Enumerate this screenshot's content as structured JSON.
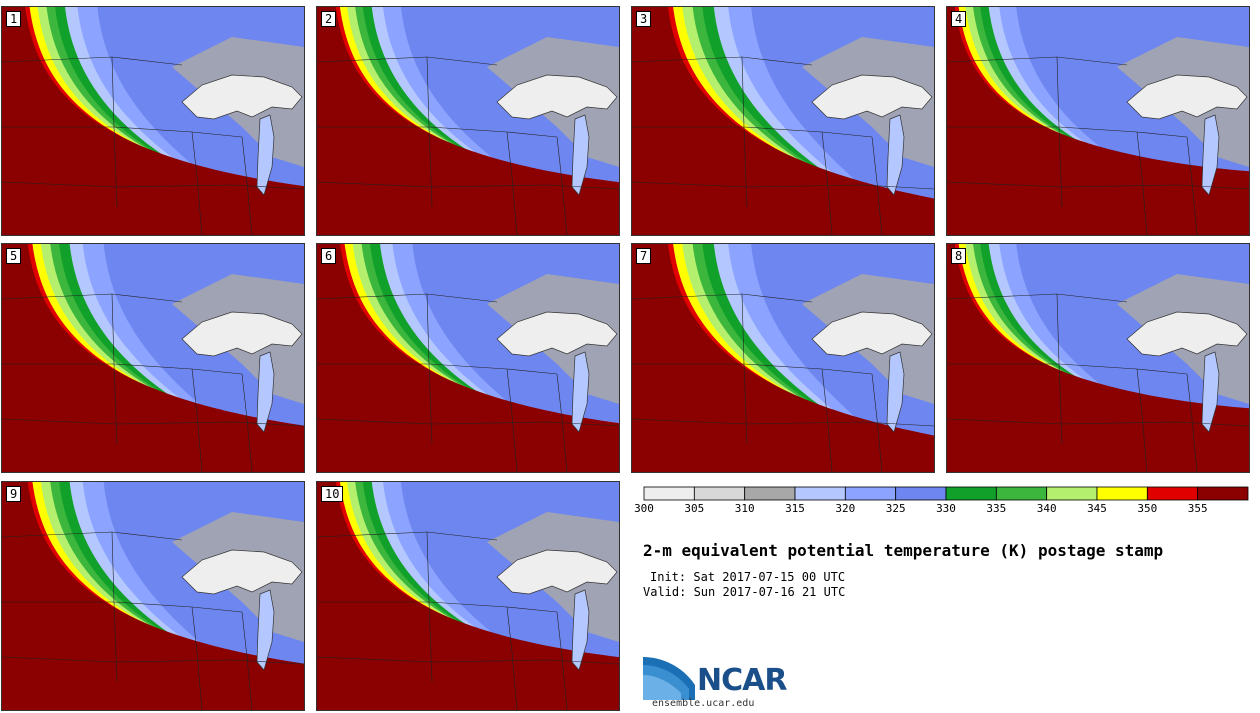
{
  "panels": [
    {
      "id": "1",
      "style": 0
    },
    {
      "id": "2",
      "style": 1
    },
    {
      "id": "3",
      "style": 2
    },
    {
      "id": "4",
      "style": 3
    },
    {
      "id": "5",
      "style": 4
    },
    {
      "id": "6",
      "style": 0
    },
    {
      "id": "7",
      "style": 2
    },
    {
      "id": "8",
      "style": 3
    },
    {
      "id": "9",
      "style": 4
    },
    {
      "id": "10",
      "style": 1
    }
  ],
  "colorbar": {
    "colors": [
      "#eeeeee",
      "#d8d8d8",
      "#a8a8a8",
      "#b4c8ff",
      "#8ca4ff",
      "#6e86f0",
      "#11a12a",
      "#3cb63c",
      "#b4f06e",
      "#ffff00",
      "#e00000",
      "#8b0000"
    ],
    "labels": [
      "300",
      "305",
      "310",
      "315",
      "320",
      "325",
      "330",
      "335",
      "340",
      "345",
      "350",
      "355"
    ]
  },
  "title": "2-m equivalent potential temperature (K) postage stamp",
  "init": "Init: Sat 2017-07-15 00 UTC",
  "valid": "Valid: Sun 2017-07-16 21 UTC",
  "logo": {
    "text": "NCAR",
    "site": "ensemble.ucar.edu"
  }
}
